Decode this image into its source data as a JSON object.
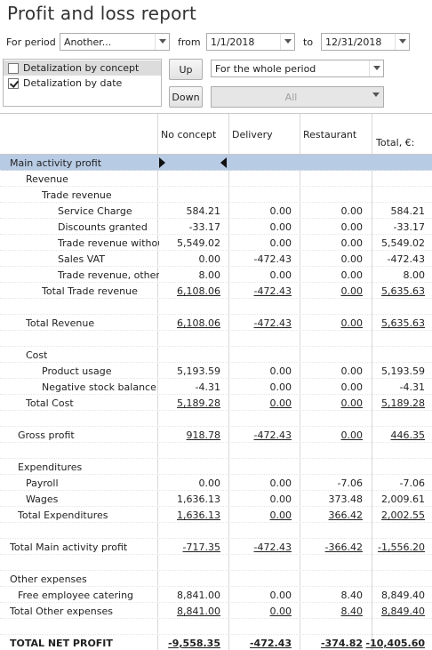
{
  "title": "Profit and loss report",
  "filters": {
    "period_label": "For period",
    "period_value": "Another...",
    "from_label": "from",
    "from_value": "1/1/2018",
    "to_label": "to",
    "to_value": "12/31/2018"
  },
  "options": [
    {
      "label": "Detalization by concept",
      "checked": false
    },
    {
      "label": "Detalization by date",
      "checked": true
    }
  ],
  "buttons": {
    "up": "Up",
    "down": "Down"
  },
  "period_scope": "For the whole period",
  "concept_filter": "All",
  "columns": [
    "No concept",
    "Delivery",
    "Restaurant",
    "Total, €:"
  ],
  "rows": [
    {
      "name": "Main activity profit",
      "indent": 0,
      "values": [
        "",
        "",
        "",
        ""
      ],
      "underline": false,
      "highlight": true
    },
    {
      "name": "Revenue",
      "indent": 1,
      "values": [
        "",
        "",
        "",
        ""
      ],
      "underline": false
    },
    {
      "name": "Trade revenue",
      "indent": 2,
      "values": [
        "",
        "",
        "",
        ""
      ],
      "underline": false
    },
    {
      "name": "Service Charge",
      "indent": 3,
      "values": [
        "584.21",
        "0.00",
        "0.00",
        "584.21"
      ],
      "underline": false
    },
    {
      "name": "Discounts granted",
      "indent": 3,
      "values": [
        "-33.17",
        "0.00",
        "0.00",
        "-33.17"
      ],
      "underline": false
    },
    {
      "name": "Trade revenue without …",
      "indent": 3,
      "values": [
        "5,549.02",
        "0.00",
        "0.00",
        "5,549.02"
      ],
      "underline": false
    },
    {
      "name": "Sales VAT",
      "indent": 3,
      "values": [
        "0.00",
        "-472.43",
        "0.00",
        "-472.43"
      ],
      "underline": false
    },
    {
      "name": "Trade revenue, other",
      "indent": 3,
      "values": [
        "8.00",
        "0.00",
        "0.00",
        "8.00"
      ],
      "underline": false
    },
    {
      "name": "Total Trade revenue",
      "indent": 2,
      "values": [
        "6,108.06",
        "-472.43",
        "0.00",
        "5,635.63"
      ],
      "underline": true
    },
    {
      "name": "",
      "indent": 0,
      "values": [
        "",
        "",
        "",
        ""
      ],
      "underline": false
    },
    {
      "name": "Total Revenue",
      "indent": 1,
      "values": [
        "6,108.06",
        "-472.43",
        "0.00",
        "5,635.63"
      ],
      "underline": true
    },
    {
      "name": "",
      "indent": 0,
      "values": [
        "",
        "",
        "",
        ""
      ],
      "underline": false
    },
    {
      "name": "Cost",
      "indent": 1,
      "values": [
        "",
        "",
        "",
        ""
      ],
      "underline": false
    },
    {
      "name": "Product usage",
      "indent": 2,
      "values": [
        "5,193.59",
        "0.00",
        "0.00",
        "5,193.59"
      ],
      "underline": false
    },
    {
      "name": "Negative stock balance a…",
      "indent": 2,
      "values": [
        "-4.31",
        "0.00",
        "0.00",
        "-4.31"
      ],
      "underline": false
    },
    {
      "name": "Total Cost",
      "indent": 1,
      "values": [
        "5,189.28",
        "0.00",
        "0.00",
        "5,189.28"
      ],
      "underline": true
    },
    {
      "name": "",
      "indent": 0,
      "values": [
        "",
        "",
        "",
        ""
      ],
      "underline": false
    },
    {
      "name": "Gross profit",
      "indent": 0.5,
      "values": [
        "918.78",
        "-472.43",
        "0.00",
        "446.35"
      ],
      "underline": true
    },
    {
      "name": "",
      "indent": 0,
      "values": [
        "",
        "",
        "",
        ""
      ],
      "underline": false
    },
    {
      "name": "Expenditures",
      "indent": 0.5,
      "values": [
        "",
        "",
        "",
        ""
      ],
      "underline": false
    },
    {
      "name": "Payroll",
      "indent": 1,
      "values": [
        "0.00",
        "0.00",
        "-7.06",
        "-7.06"
      ],
      "underline": false
    },
    {
      "name": "Wages",
      "indent": 1,
      "values": [
        "1,636.13",
        "0.00",
        "373.48",
        "2,009.61"
      ],
      "underline": false
    },
    {
      "name": "Total Expenditures",
      "indent": 0.5,
      "values": [
        "1,636.13",
        "0.00",
        "366.42",
        "2,002.55"
      ],
      "underline": true
    },
    {
      "name": "",
      "indent": 0,
      "values": [
        "",
        "",
        "",
        ""
      ],
      "underline": false
    },
    {
      "name": "Total Main activity profit",
      "indent": 0,
      "values": [
        "-717.35",
        "-472.43",
        "-366.42",
        "-1,556.20"
      ],
      "underline": true
    },
    {
      "name": "",
      "indent": 0,
      "values": [
        "",
        "",
        "",
        ""
      ],
      "underline": false
    },
    {
      "name": "Other expenses",
      "indent": 0,
      "values": [
        "",
        "",
        "",
        ""
      ],
      "underline": false
    },
    {
      "name": "Free employee catering",
      "indent": 0.5,
      "values": [
        "8,841.00",
        "0.00",
        "8.40",
        "8,849.40"
      ],
      "underline": false
    },
    {
      "name": "Total Other expenses",
      "indent": 0,
      "values": [
        "8,841.00",
        "0.00",
        "8.40",
        "8,849.40"
      ],
      "underline": true
    },
    {
      "name": "",
      "indent": 0,
      "values": [
        "",
        "",
        "",
        ""
      ],
      "underline": false
    },
    {
      "name": "TOTAL NET PROFIT",
      "indent": 0,
      "values": [
        "-9,558.35",
        "-472.43",
        "-374.82",
        "-10,405.60"
      ],
      "underline": true,
      "bold": true
    }
  ]
}
